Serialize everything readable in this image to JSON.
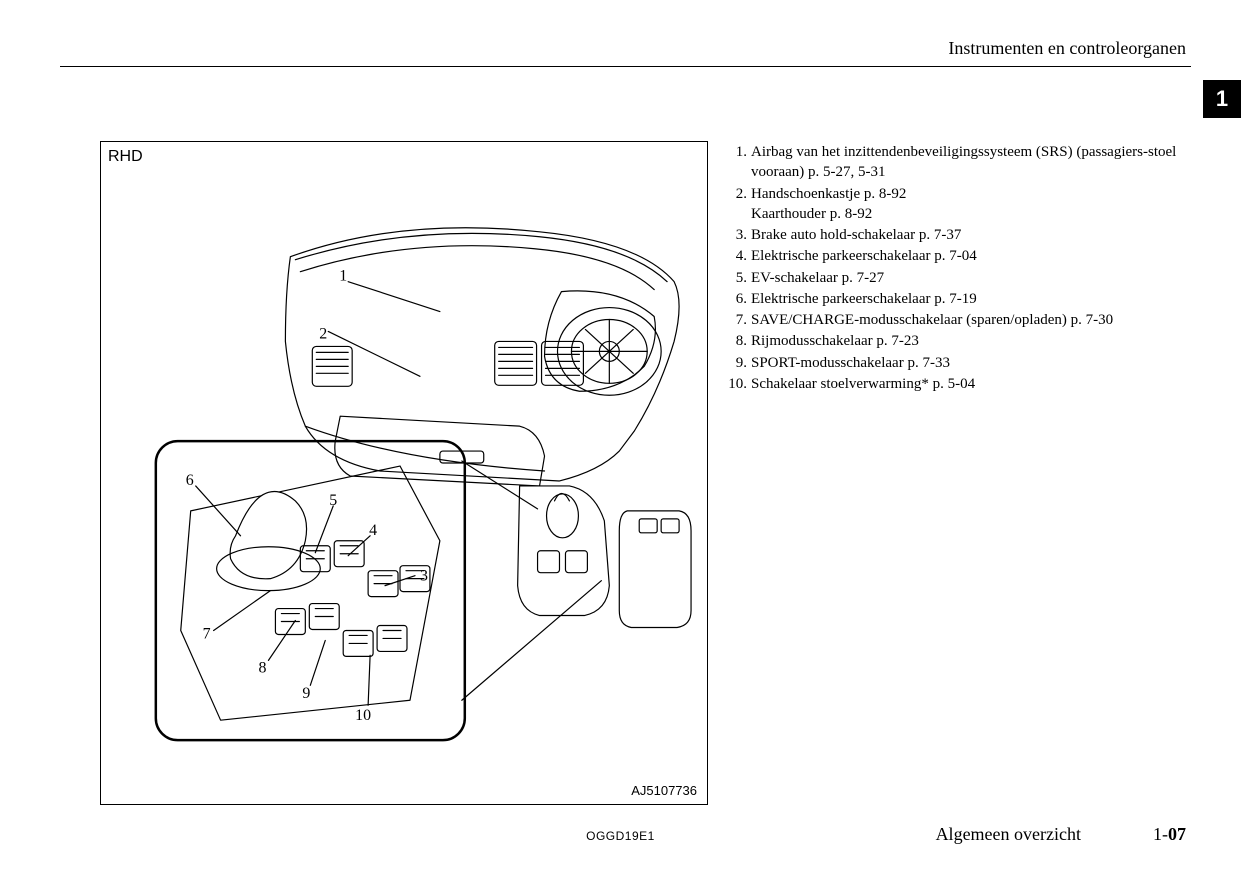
{
  "header": {
    "title": "Instrumenten en controleorganen",
    "chapter_tab": "1"
  },
  "diagram": {
    "variant_label": "RHD",
    "image_code": "AJ5107736",
    "callout_numbers": [
      "1",
      "2",
      "3",
      "4",
      "5",
      "6",
      "7",
      "8",
      "9",
      "10"
    ]
  },
  "callouts": [
    {
      "n": "1.",
      "text": "Airbag van het inzittendenbeveiligingssysteem (SRS) (passagiers-stoel vooraan) p. 5-27, 5-31"
    },
    {
      "n": "2.",
      "text": "Handschoenkastje p. 8-92",
      "sub": "Kaarthouder p. 8-92"
    },
    {
      "n": "3.",
      "text": "Brake auto hold-schakelaar p. 7-37"
    },
    {
      "n": "4.",
      "text": "Elektrische parkeerschakelaar p. 7-04"
    },
    {
      "n": "5.",
      "text": "EV-schakelaar p. 7-27"
    },
    {
      "n": "6.",
      "text": "Elektrische parkeerschakelaar p. 7-19"
    },
    {
      "n": "7.",
      "text": "SAVE/CHARGE-modusschakelaar (sparen/opladen) p. 7-30"
    },
    {
      "n": "8.",
      "text": "Rijmodusschakelaar p. 7-23"
    },
    {
      "n": "9.",
      "text": "SPORT-modusschakelaar p. 7-33"
    },
    {
      "n": "10.",
      "text": "Schakelaar stoelverwarming* p. 5-04"
    }
  ],
  "footer": {
    "doc_code": "OGGD19E1",
    "section_title": "Algemeen overzicht",
    "page_section": "1-",
    "page_number": "07"
  },
  "style": {
    "page_bg": "#ffffff",
    "text_color": "#000000",
    "rule_color": "#000000",
    "tab_bg": "#000000",
    "tab_fg": "#ffffff",
    "body_fontsize": 15,
    "header_fontsize": 18,
    "footer_fontsize": 18,
    "diagram_stroke": "#000000",
    "diagram_stroke_width": 1.2
  }
}
